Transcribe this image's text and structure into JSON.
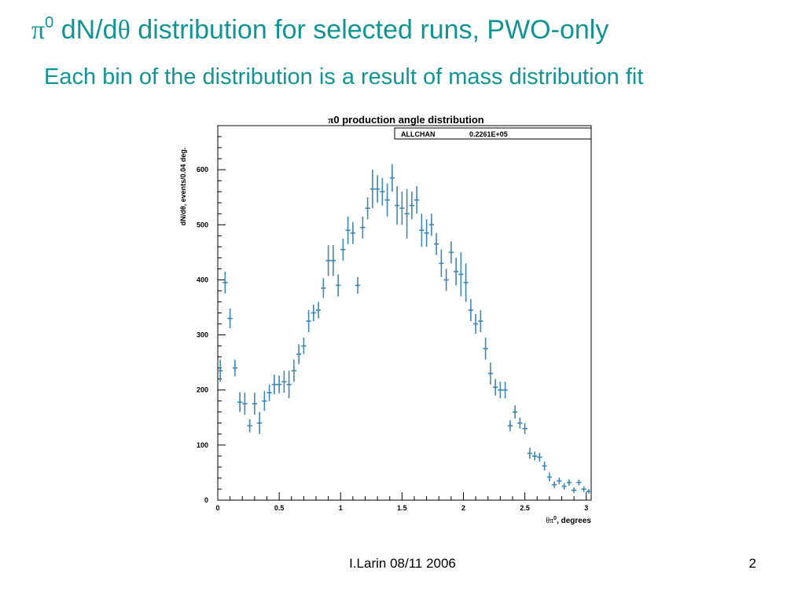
{
  "slide": {
    "title_symbol": "π",
    "title_sup": "0",
    "title_dn": " dN/d",
    "title_theta": "θ",
    "title_rest": " distribution for selected runs, PWO-only",
    "subtitle": "Each bin of the distribution is a result of mass distribution fit",
    "footer_author": "I.Larin 08/11 2006",
    "page_number": "2"
  },
  "colors": {
    "title": "#139494",
    "points": "#3e86b4",
    "frame": "#000000"
  },
  "chart_data": {
    "type": "scatter",
    "title_pi": "π",
    "title": "0 production angle distribution",
    "ylabel": "dN/dθ, events/0.04 deg.",
    "xlabel_theta": "θπ",
    "xlabel_sup": "0",
    "xlabel_rest": ", degrees",
    "stats_box": {
      "name": "ALLCHAN",
      "value": "0.2261E+05"
    },
    "xlim": [
      0,
      3.04
    ],
    "ylim": [
      0,
      680
    ],
    "x_ticks": [
      0,
      0.5,
      1,
      1.5,
      2,
      2.5,
      3
    ],
    "x_tick_labels": [
      "0",
      "0.5",
      "1",
      "1.5",
      "2",
      "2.5",
      "3"
    ],
    "y_ticks": [
      0,
      100,
      200,
      300,
      400,
      500,
      600
    ],
    "y_tick_labels": [
      "0",
      "100",
      "200",
      "300",
      "400",
      "500",
      "600"
    ],
    "bin_width": 0.04,
    "x": [
      0.02,
      0.06,
      0.1,
      0.14,
      0.18,
      0.22,
      0.26,
      0.3,
      0.34,
      0.38,
      0.42,
      0.46,
      0.5,
      0.54,
      0.58,
      0.62,
      0.66,
      0.7,
      0.74,
      0.78,
      0.82,
      0.86,
      0.9,
      0.94,
      0.98,
      1.02,
      1.06,
      1.1,
      1.14,
      1.18,
      1.22,
      1.26,
      1.3,
      1.34,
      1.38,
      1.42,
      1.46,
      1.5,
      1.54,
      1.58,
      1.62,
      1.66,
      1.7,
      1.74,
      1.78,
      1.82,
      1.86,
      1.9,
      1.94,
      1.98,
      2.02,
      2.06,
      2.1,
      2.14,
      2.18,
      2.22,
      2.26,
      2.3,
      2.34,
      2.38,
      2.42,
      2.46,
      2.5,
      2.54,
      2.58,
      2.62,
      2.66,
      2.7,
      2.74,
      2.78,
      2.82,
      2.86,
      2.9,
      2.94,
      2.98,
      3.02
    ],
    "y": [
      235,
      395,
      330,
      240,
      178,
      175,
      135,
      175,
      140,
      180,
      195,
      210,
      210,
      215,
      210,
      235,
      265,
      280,
      325,
      340,
      345,
      385,
      435,
      435,
      390,
      455,
      490,
      485,
      390,
      495,
      530,
      565,
      565,
      560,
      545,
      585,
      535,
      530,
      520,
      535,
      545,
      490,
      485,
      500,
      465,
      430,
      400,
      450,
      415,
      410,
      395,
      345,
      320,
      325,
      275,
      230,
      205,
      200,
      200,
      135,
      160,
      140,
      130,
      85,
      80,
      78,
      62,
      42,
      28,
      35,
      25,
      32,
      18,
      32,
      20,
      16
    ],
    "err": [
      20,
      20,
      18,
      15,
      18,
      20,
      12,
      20,
      20,
      18,
      15,
      18,
      16,
      20,
      25,
      20,
      18,
      15,
      20,
      15,
      15,
      18,
      28,
      28,
      20,
      20,
      25,
      20,
      15,
      20,
      20,
      35,
      25,
      25,
      30,
      25,
      35,
      30,
      45,
      25,
      25,
      30,
      25,
      20,
      20,
      25,
      20,
      20,
      25,
      40,
      35,
      20,
      18,
      20,
      20,
      20,
      15,
      15,
      15,
      10,
      12,
      10,
      10,
      10,
      8,
      8,
      8,
      8,
      6,
      6,
      6,
      6,
      5,
      5,
      5,
      4
    ]
  }
}
